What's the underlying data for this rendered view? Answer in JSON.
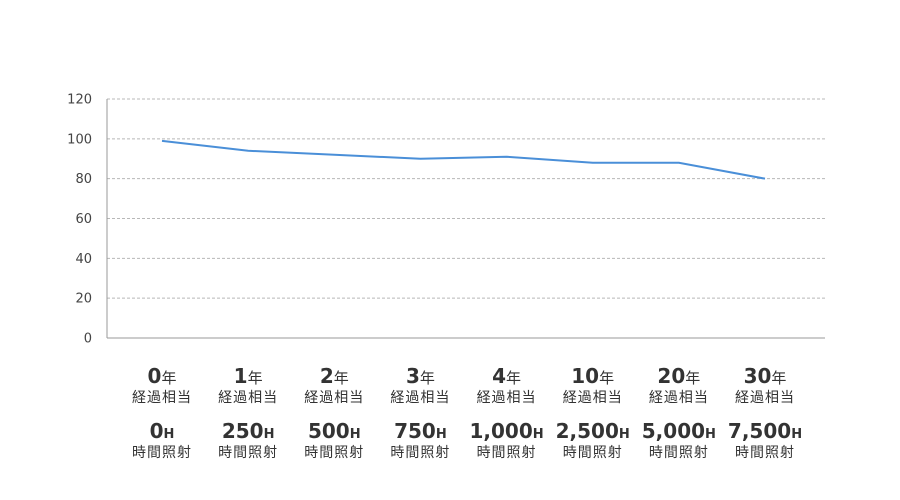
{
  "chart_data": {
    "type": "line",
    "title": "",
    "xlabel": "",
    "ylabel": "",
    "ylim": [
      0,
      120
    ],
    "yticks": [
      0,
      20,
      40,
      60,
      80,
      100,
      120
    ],
    "grid": true,
    "legend": "none",
    "categories": [
      {
        "year_value": "0",
        "year_unit": "年",
        "year_caption": "経過相当",
        "hours_value": "0",
        "hours_unit": "H",
        "hours_caption": "時間照射"
      },
      {
        "year_value": "1",
        "year_unit": "年",
        "year_caption": "経過相当",
        "hours_value": "250",
        "hours_unit": "H",
        "hours_caption": "時間照射"
      },
      {
        "year_value": "2",
        "year_unit": "年",
        "year_caption": "経過相当",
        "hours_value": "500",
        "hours_unit": "H",
        "hours_caption": "時間照射"
      },
      {
        "year_value": "3",
        "year_unit": "年",
        "year_caption": "経過相当",
        "hours_value": "750",
        "hours_unit": "H",
        "hours_caption": "時間照射"
      },
      {
        "year_value": "4",
        "year_unit": "年",
        "year_caption": "経過相当",
        "hours_value": "1,000",
        "hours_unit": "H",
        "hours_caption": "時間照射"
      },
      {
        "year_value": "10",
        "year_unit": "年",
        "year_caption": "経過相当",
        "hours_value": "2,500",
        "hours_unit": "H",
        "hours_caption": "時間照射"
      },
      {
        "year_value": "20",
        "year_unit": "年",
        "year_caption": "経過相当",
        "hours_value": "5,000",
        "hours_unit": "H",
        "hours_caption": "時間照射"
      },
      {
        "year_value": "30",
        "year_unit": "年",
        "year_caption": "経過相当",
        "hours_value": "7,500",
        "hours_unit": "H",
        "hours_caption": "時間照射"
      }
    ],
    "series": [
      {
        "color": "#4a8fd8",
        "values": [
          99,
          94,
          92,
          90,
          91,
          88,
          88,
          80
        ]
      }
    ]
  }
}
